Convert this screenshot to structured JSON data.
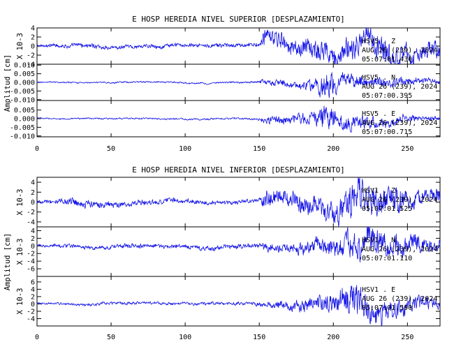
{
  "chart_data": [
    {
      "type": "line",
      "title": "E HOSP HEREDIA NIVEL SUPERIOR [DESPLAZAMIENTO]",
      "ylabel": "Amplitud [cm]",
      "xlim": [
        0,
        272
      ],
      "xticks": [
        0,
        50,
        100,
        150,
        200,
        250
      ],
      "grid": false,
      "panels": [
        {
          "station": "HSV5 . Z",
          "date": "AUG 26 (239), 2024",
          "time": "05:07:01.430",
          "scale_label": "X 10-3",
          "ylim": [
            -4,
            4
          ],
          "yticks": [
            4,
            2,
            0,
            -2,
            -4
          ],
          "ytick_labels": [
            "4",
            "2",
            "0",
            "-2",
            "-4"
          ],
          "envelope": [
            [
              0,
              0.35
            ],
            [
              30,
              0.5
            ],
            [
              60,
              0.45
            ],
            [
              100,
              0.45
            ],
            [
              140,
              0.5
            ],
            [
              151,
              0.6
            ],
            [
              152,
              2.2
            ],
            [
              175,
              2.0
            ],
            [
              190,
              2.3
            ],
            [
              205,
              2.6
            ],
            [
              230,
              3.0
            ],
            [
              250,
              2.6
            ],
            [
              265,
              2.0
            ],
            [
              272,
              1.8
            ]
          ]
        },
        {
          "station": "HSV5 . N",
          "date": "AUG 26 (239), 2024",
          "time": "05:07:00.395",
          "scale_label": "",
          "ylim": [
            -0.0105,
            0.0105
          ],
          "yticks": [
            0.01,
            0.005,
            0.0,
            -0.005,
            -0.01
          ],
          "ytick_labels": [
            "0.010",
            "0.005",
            "0.000",
            "-0.005",
            "-0.010"
          ],
          "envelope": [
            [
              0,
              0.0004
            ],
            [
              100,
              0.0005
            ],
            [
              150,
              0.0006
            ],
            [
              152,
              0.0016
            ],
            [
              175,
              0.0022
            ],
            [
              188,
              0.0038
            ],
            [
              196,
              0.0078
            ],
            [
              205,
              0.0045
            ],
            [
              225,
              0.003
            ],
            [
              250,
              0.0022
            ],
            [
              272,
              0.0012
            ]
          ]
        },
        {
          "station": "HSV5 . E",
          "date": "AUG 26 (239), 2024",
          "time": "05:07:00.715",
          "scale_label": "",
          "ylim": [
            -0.0105,
            0.0105
          ],
          "yticks": [
            0.005,
            0.0,
            -0.005,
            -0.01
          ],
          "ytick_labels": [
            "0.005",
            "0.000",
            "-0.005",
            "-0.010"
          ],
          "envelope": [
            [
              0,
              0.0004
            ],
            [
              100,
              0.0005
            ],
            [
              150,
              0.0006
            ],
            [
              152,
              0.0018
            ],
            [
              175,
              0.0028
            ],
            [
              188,
              0.0045
            ],
            [
              196,
              0.008
            ],
            [
              205,
              0.005
            ],
            [
              225,
              0.0032
            ],
            [
              250,
              0.0022
            ],
            [
              272,
              0.0012
            ]
          ]
        }
      ]
    },
    {
      "type": "line",
      "title": "E HOSP HEREDIA NIVEL INFERIOR [DESPLAZAMIENTO]",
      "ylabel": "Amplitud [cm]",
      "xlim": [
        0,
        272
      ],
      "xticks": [
        0,
        50,
        100,
        150,
        200,
        250
      ],
      "grid": false,
      "panels": [
        {
          "station": "HSV1 . Z",
          "date": "AUG 26 (239), 2024",
          "time": "05:07:01.525",
          "scale_label": "X 10-3",
          "ylim": [
            -5,
            5
          ],
          "yticks": [
            4,
            2,
            0,
            -2,
            -4
          ],
          "ytick_labels": [
            "4",
            "2",
            "0",
            "-2",
            "-4"
          ],
          "envelope": [
            [
              0,
              0.3
            ],
            [
              30,
              0.8
            ],
            [
              60,
              0.6
            ],
            [
              100,
              0.5
            ],
            [
              140,
              0.4
            ],
            [
              151,
              0.5
            ],
            [
              152,
              1.5
            ],
            [
              180,
              1.8
            ],
            [
              200,
              2.6
            ],
            [
              215,
              3.6
            ],
            [
              230,
              3.2
            ],
            [
              250,
              2.2
            ],
            [
              272,
              1.5
            ]
          ]
        },
        {
          "station": "HSV1 . N",
          "date": "AUG 26 (239), 2024",
          "time": "05:07:01.110",
          "scale_label": "X 10-3",
          "ylim": [
            -8,
            5
          ],
          "yticks": [
            4,
            2,
            0,
            -2,
            -4,
            -6
          ],
          "ytick_labels": [
            "4",
            "2",
            "0",
            "-2",
            "-4",
            "-6"
          ],
          "envelope": [
            [
              0,
              0.4
            ],
            [
              50,
              0.6
            ],
            [
              100,
              0.6
            ],
            [
              150,
              0.6
            ],
            [
              152,
              1.0
            ],
            [
              180,
              1.6
            ],
            [
              200,
              2.4
            ],
            [
              215,
              3.8
            ],
            [
              230,
              3.5
            ],
            [
              250,
              2.5
            ],
            [
              272,
              1.5
            ]
          ]
        },
        {
          "station": "HSV1 . E",
          "date": "AUG 26 (239), 2024",
          "time": "05:07:01.590",
          "scale_label": "X 10-3",
          "ylim": [
            -6,
            7.5
          ],
          "yticks": [
            6,
            4,
            2,
            0,
            -2,
            -4
          ],
          "ytick_labels": [
            "6",
            "4",
            "2",
            "0",
            "-2",
            "-4"
          ],
          "envelope": [
            [
              0,
              0.3
            ],
            [
              50,
              0.4
            ],
            [
              100,
              0.4
            ],
            [
              150,
              0.5
            ],
            [
              152,
              0.8
            ],
            [
              180,
              1.6
            ],
            [
              200,
              2.6
            ],
            [
              212,
              4.8
            ],
            [
              225,
              3.6
            ],
            [
              245,
              2.5
            ],
            [
              272,
              1.5
            ]
          ]
        }
      ]
    }
  ]
}
